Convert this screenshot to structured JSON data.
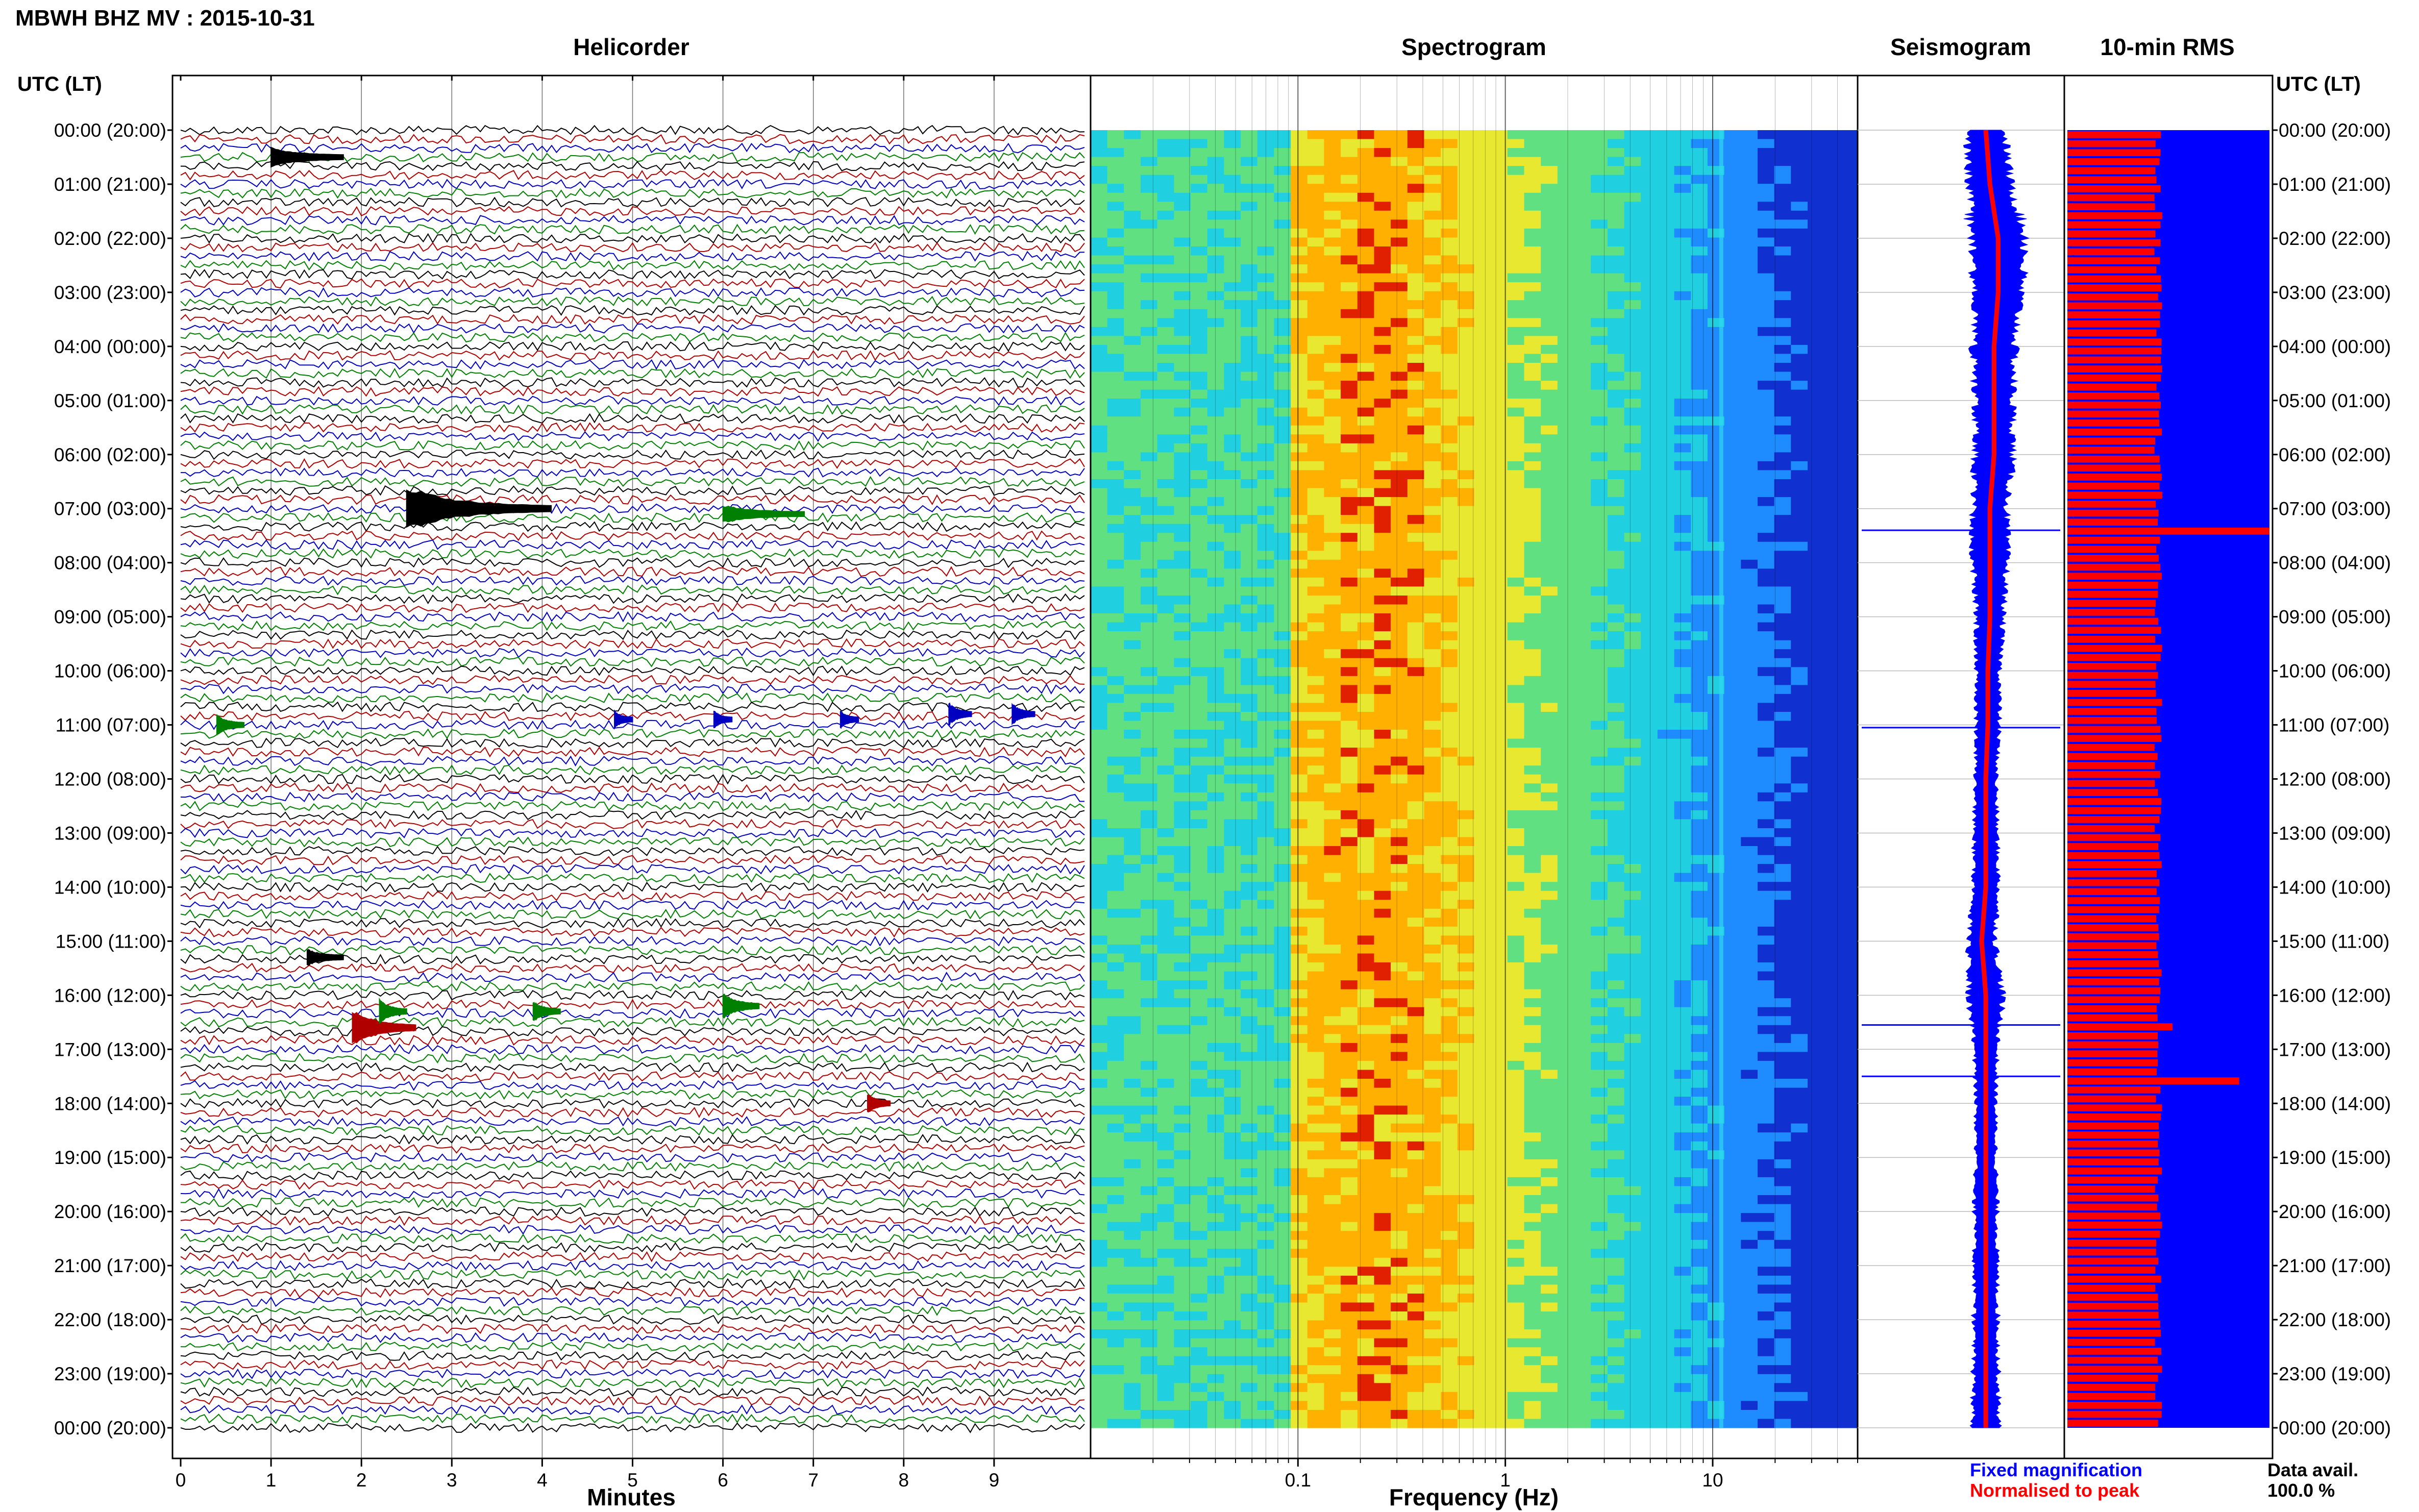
{
  "header": {
    "title": "MBWH BHZ MV : 2015-10-31",
    "time_axis_label_left": "UTC (LT)",
    "time_axis_label_right": "UTC (LT)"
  },
  "panels": {
    "helicorder": "Helicorder",
    "spectrogram": "Spectrogram",
    "seismogram": "Seismogram",
    "rms": "10-min RMS"
  },
  "time_labels": [
    "00:00 (20:00)",
    "01:00 (21:00)",
    "02:00 (22:00)",
    "03:00 (23:00)",
    "04:00 (00:00)",
    "05:00 (01:00)",
    "06:00 (02:00)",
    "07:00 (03:00)",
    "08:00 (04:00)",
    "09:00 (05:00)",
    "10:00 (06:00)",
    "11:00 (07:00)",
    "12:00 (08:00)",
    "13:00 (09:00)",
    "14:00 (10:00)",
    "15:00 (11:00)",
    "16:00 (12:00)",
    "17:00 (13:00)",
    "18:00 (14:00)",
    "19:00 (15:00)",
    "20:00 (16:00)",
    "21:00 (17:00)",
    "22:00 (18:00)",
    "23:00 (19:00)",
    "00:00 (20:00)"
  ],
  "legend": {
    "fixed": "Fixed magnification",
    "normalised": "Normalised to peak",
    "fixed_color": "#0000ff",
    "normalised_color": "#ff0000"
  },
  "availability": {
    "label": "Data avail.",
    "value": "100.0 %"
  },
  "colors": {
    "trace_cycle": [
      "#000000",
      "#b00000",
      "#0000c0",
      "#008000"
    ],
    "spectrogram_map": [
      "#1030d0",
      "#1e8cff",
      "#20d0e0",
      "#60e080",
      "#e8e830",
      "#ffb000",
      "#e02000"
    ],
    "seismogram_fill": "#0000ff",
    "seismogram_line": "#ff0000",
    "rms_background": "#0000ff",
    "rms_bar": "#ff0000"
  },
  "chart_data": [
    {
      "type": "line",
      "name": "helicorder",
      "xlabel": "Minutes",
      "xlim": [
        0,
        10
      ],
      "xticks": [
        "0",
        "1",
        "2",
        "3",
        "4",
        "5",
        "6",
        "7",
        "8",
        "9"
      ],
      "rows_per_hour": 6,
      "hours": 24,
      "events": [
        {
          "hour": 0.5,
          "minute": 1.0,
          "amp": 1.2,
          "dur": 0.8,
          "color": "#000000"
        },
        {
          "hour": 7.0,
          "minute": 2.5,
          "amp": 3.0,
          "dur": 1.6,
          "color": "#000000"
        },
        {
          "hour": 7.1,
          "minute": 6.0,
          "amp": 1.0,
          "dur": 0.9,
          "color": "#008000"
        },
        {
          "hour": 11.0,
          "minute": 0.4,
          "amp": 1.2,
          "dur": 0.3,
          "color": "#008000"
        },
        {
          "hour": 10.9,
          "minute": 4.8,
          "amp": 1.0,
          "dur": 0.2,
          "color": "#0000c0"
        },
        {
          "hour": 10.9,
          "minute": 5.9,
          "amp": 1.0,
          "dur": 0.2,
          "color": "#0000c0"
        },
        {
          "hour": 10.9,
          "minute": 7.3,
          "amp": 1.0,
          "dur": 0.2,
          "color": "#0000c0"
        },
        {
          "hour": 10.8,
          "minute": 8.5,
          "amp": 1.4,
          "dur": 0.25,
          "color": "#0000c0"
        },
        {
          "hour": 10.8,
          "minute": 9.2,
          "amp": 1.3,
          "dur": 0.25,
          "color": "#0000c0"
        },
        {
          "hour": 16.6,
          "minute": 1.9,
          "amp": 2.5,
          "dur": 0.7,
          "color": "#b00000"
        },
        {
          "hour": 16.3,
          "minute": 2.2,
          "amp": 1.5,
          "dur": 0.3,
          "color": "#008000"
        },
        {
          "hour": 16.3,
          "minute": 3.9,
          "amp": 1.2,
          "dur": 0.3,
          "color": "#008000"
        },
        {
          "hour": 16.2,
          "minute": 6.0,
          "amp": 1.7,
          "dur": 0.4,
          "color": "#008000"
        },
        {
          "hour": 18.0,
          "minute": 7.6,
          "amp": 1.2,
          "dur": 0.25,
          "color": "#b00000"
        },
        {
          "hour": 15.3,
          "minute": 1.4,
          "amp": 0.9,
          "dur": 0.4,
          "color": "#000000"
        }
      ]
    },
    {
      "type": "heatmap",
      "name": "spectrogram",
      "xlabel": "Frequency (Hz)",
      "xscale": "log",
      "xlim": [
        0.01,
        50
      ],
      "xticks": [
        0.1,
        1,
        10
      ],
      "xtick_labels": [
        "0.1",
        "1",
        "10"
      ],
      "band_peak_hz": 0.25,
      "line_hz": 11
    },
    {
      "type": "area",
      "name": "seismogram",
      "hours": 24,
      "fixed_halfwidth": [
        0.5,
        0.55,
        0.75,
        0.6,
        0.55,
        0.5,
        0.5,
        0.45,
        0.45,
        0.35,
        0.32,
        0.3,
        0.28,
        0.3,
        0.34,
        0.36,
        0.45,
        0.3,
        0.26,
        0.27,
        0.3,
        0.3,
        0.32,
        0.33,
        0.35
      ],
      "normalised_center": [
        0.62,
        0.64,
        0.68,
        0.68,
        0.66,
        0.66,
        0.66,
        0.64,
        0.64,
        0.64,
        0.63,
        0.63,
        0.62,
        0.62,
        0.62,
        0.6,
        0.62,
        0.62,
        0.62,
        0.62,
        0.62,
        0.62,
        0.62,
        0.62,
        0.62
      ],
      "spikes_hour": [
        7.4,
        11.05,
        16.55,
        17.5
      ]
    },
    {
      "type": "bar",
      "name": "rms",
      "bars_per_hour": 6,
      "hours": 24,
      "baseline_fraction": 0.45,
      "peaks": [
        {
          "hour": 7.4,
          "value": 1.0
        },
        {
          "hour": 16.55,
          "value": 0.52
        },
        {
          "hour": 17.55,
          "value": 0.85
        }
      ]
    }
  ]
}
